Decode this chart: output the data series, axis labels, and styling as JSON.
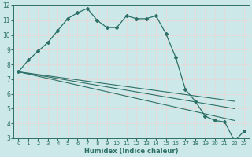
{
  "xlabel": "Humidex (Indice chaleur)",
  "bg_color": "#cce8e8",
  "grid_color": "#e8d8d8",
  "line_color": "#2d7068",
  "xlim": [
    -0.5,
    23.5
  ],
  "ylim": [
    3,
    12
  ],
  "xticks": [
    0,
    1,
    2,
    3,
    4,
    5,
    6,
    7,
    8,
    9,
    10,
    11,
    12,
    13,
    14,
    15,
    16,
    17,
    18,
    19,
    20,
    21,
    22,
    23
  ],
  "yticks": [
    3,
    4,
    5,
    6,
    7,
    8,
    9,
    10,
    11,
    12
  ],
  "main_line": {
    "x": [
      0,
      1,
      2,
      3,
      4,
      5,
      6,
      7,
      8,
      9,
      10,
      11,
      12,
      13,
      14,
      15,
      16,
      17,
      18,
      19,
      20,
      21,
      22,
      23
    ],
    "y": [
      7.5,
      8.3,
      8.9,
      9.5,
      10.3,
      11.1,
      11.5,
      11.8,
      11.0,
      10.5,
      10.5,
      11.3,
      11.1,
      11.1,
      11.3,
      10.1,
      8.5,
      6.3,
      5.5,
      4.5,
      4.2,
      4.1,
      2.8,
      3.5
    ]
  },
  "straight_lines": [
    {
      "x": [
        0,
        22
      ],
      "y": [
        7.5,
        4.2
      ]
    },
    {
      "x": [
        0,
        22
      ],
      "y": [
        7.5,
        5.0
      ]
    },
    {
      "x": [
        0,
        22
      ],
      "y": [
        7.5,
        5.5
      ]
    }
  ]
}
